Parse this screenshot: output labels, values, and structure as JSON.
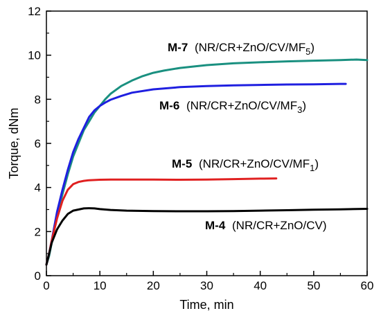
{
  "chart_data": {
    "type": "line",
    "xlabel": "Time, min",
    "ylabel": "Torque, dNm",
    "xlim": [
      0,
      60
    ],
    "ylim": [
      0,
      12
    ],
    "xticks": [
      0,
      10,
      20,
      30,
      40,
      50,
      60
    ],
    "yticks": [
      0,
      2,
      4,
      6,
      8,
      10,
      12
    ],
    "grid": false,
    "legend": "inline labels next to each curve",
    "series": [
      {
        "code": "M-7",
        "composition": "(NR/CR+ZnO/CV/MF",
        "subscript": "5",
        "closing": ")",
        "color": "#1a9080",
        "x": [
          0,
          0.5,
          1,
          2,
          3,
          4,
          5,
          6,
          7,
          8,
          9,
          10,
          11,
          12,
          14,
          16,
          18,
          20,
          22,
          25,
          28,
          30,
          35,
          40,
          45,
          50,
          55,
          58,
          60
        ],
        "y": [
          0.5,
          0.9,
          1.5,
          2.7,
          3.7,
          4.6,
          5.4,
          6.0,
          6.6,
          7.0,
          7.4,
          7.7,
          8.0,
          8.25,
          8.6,
          8.85,
          9.05,
          9.2,
          9.3,
          9.42,
          9.5,
          9.55,
          9.63,
          9.68,
          9.72,
          9.75,
          9.78,
          9.8,
          9.78
        ]
      },
      {
        "code": "M-6",
        "composition": "(NR/CR+ZnO/CV/MF",
        "subscript": "3",
        "closing": ")",
        "color": "#1f1fe0",
        "x": [
          0,
          0.5,
          1,
          2,
          3,
          4,
          5,
          6,
          7,
          8,
          9,
          10,
          11,
          12,
          14,
          16,
          20,
          25,
          30,
          35,
          40,
          45,
          50,
          55,
          56
        ],
        "y": [
          0.5,
          1.0,
          1.6,
          2.9,
          3.9,
          4.8,
          5.6,
          6.2,
          6.7,
          7.2,
          7.5,
          7.7,
          7.85,
          7.98,
          8.15,
          8.3,
          8.45,
          8.55,
          8.6,
          8.63,
          8.65,
          8.67,
          8.68,
          8.7,
          8.7
        ]
      },
      {
        "code": "M-5",
        "composition": "(NR/CR+ZnO/CV/MF",
        "subscript": "1",
        "closing": ")",
        "color": "#e02020",
        "x": [
          0,
          0.5,
          1,
          2,
          3,
          4,
          5,
          6,
          7,
          8,
          10,
          12,
          15,
          20,
          25,
          30,
          35,
          40,
          43
        ],
        "y": [
          0.5,
          1.0,
          1.6,
          2.6,
          3.4,
          3.9,
          4.15,
          4.25,
          4.3,
          4.33,
          4.35,
          4.36,
          4.36,
          4.36,
          4.35,
          4.36,
          4.38,
          4.4,
          4.41
        ]
      },
      {
        "code": "M-4",
        "composition": "(NR/CR+ZnO/CV)",
        "subscript": "",
        "closing": "",
        "color": "#000000",
        "x": [
          0,
          0.5,
          1,
          2,
          3,
          4,
          5,
          6,
          7,
          8,
          9,
          10,
          12,
          15,
          20,
          25,
          30,
          35,
          40,
          45,
          50,
          55,
          60
        ],
        "y": [
          0.5,
          1.0,
          1.5,
          2.1,
          2.5,
          2.8,
          2.95,
          3.0,
          3.05,
          3.06,
          3.05,
          3.02,
          2.98,
          2.95,
          2.93,
          2.92,
          2.92,
          2.93,
          2.95,
          2.97,
          2.99,
          3.01,
          3.03
        ]
      }
    ]
  }
}
